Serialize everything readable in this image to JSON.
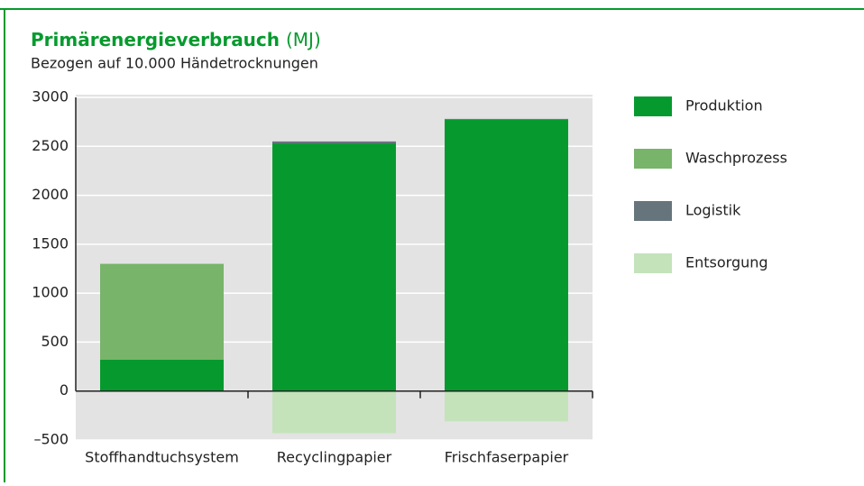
{
  "chart_data": {
    "type": "stacked_bar",
    "title": "Primärenergieverbrauch",
    "title_unit": "(MJ)",
    "subtitle": "Bezogen auf 10.000 Händetrocknungen",
    "categories": [
      "Stoffhandtuchsystem",
      "Recyclingpapier",
      "Frischfaserpapier"
    ],
    "series": [
      {
        "name": "Produktion",
        "color": "#069a2e",
        "values": [
          320,
          2530,
          2770
        ]
      },
      {
        "name": "Waschprozess",
        "color": "#78b46a",
        "values": [
          980,
          0,
          0
        ]
      },
      {
        "name": "Logistik",
        "color": "#66757c",
        "values": [
          0,
          20,
          10
        ]
      },
      {
        "name": "Entsorgung",
        "color": "#c4e3bb",
        "values": [
          0,
          -430,
          -310
        ]
      }
    ],
    "ylim": [
      -500,
      3000
    ],
    "yticks": [
      {
        "value": -500,
        "label": "–500"
      },
      0,
      500,
      1000,
      1500,
      2000,
      2500,
      3000
    ],
    "grid": true
  }
}
